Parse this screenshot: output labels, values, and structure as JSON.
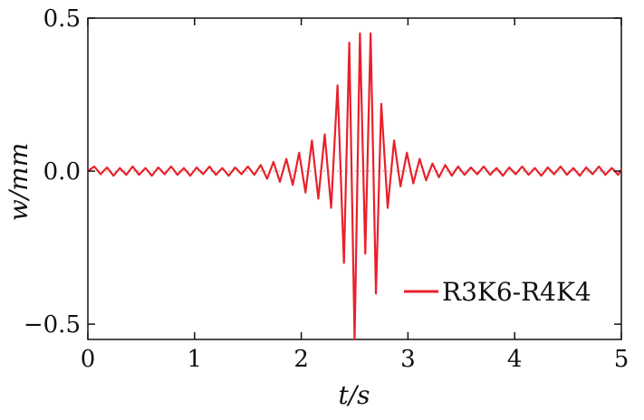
{
  "chart_data": {
    "type": "line",
    "xlabel": "t/s",
    "ylabel": "w/mm",
    "xlim": [
      0,
      5
    ],
    "ylim": [
      -0.55,
      0.5
    ],
    "x_ticks": [
      0,
      1,
      2,
      3,
      4,
      5
    ],
    "y_ticks": [
      -0.5,
      0.0,
      0.5
    ],
    "x_tick_labels": [
      "0",
      "1",
      "2",
      "3",
      "4",
      "5"
    ],
    "y_tick_labels": [
      "−0.5",
      "0.0",
      "0.5"
    ],
    "grid": false,
    "legend_position": "bottom-right",
    "series": [
      {
        "name": "R3K6-R4K4",
        "color": "#e8212b",
        "x": [
          0.0,
          0.06,
          0.12,
          0.18,
          0.24,
          0.3,
          0.36,
          0.42,
          0.48,
          0.54,
          0.6,
          0.66,
          0.72,
          0.78,
          0.84,
          0.9,
          0.96,
          1.02,
          1.08,
          1.14,
          1.2,
          1.26,
          1.32,
          1.38,
          1.44,
          1.5,
          1.56,
          1.62,
          1.68,
          1.74,
          1.8,
          1.86,
          1.92,
          1.98,
          2.04,
          2.1,
          2.16,
          2.22,
          2.28,
          2.34,
          2.4,
          2.45,
          2.5,
          2.55,
          2.6,
          2.65,
          2.7,
          2.75,
          2.81,
          2.87,
          2.93,
          2.99,
          3.05,
          3.11,
          3.17,
          3.23,
          3.29,
          3.35,
          3.41,
          3.47,
          3.53,
          3.59,
          3.65,
          3.71,
          3.77,
          3.83,
          3.89,
          3.95,
          4.01,
          4.07,
          4.13,
          4.19,
          4.25,
          4.31,
          4.37,
          4.43,
          4.49,
          4.55,
          4.61,
          4.67,
          4.73,
          4.79,
          4.85,
          4.91,
          4.97,
          5.0
        ],
        "y": [
          0.0,
          0.015,
          -0.01,
          0.012,
          -0.015,
          0.01,
          -0.012,
          0.015,
          -0.012,
          0.01,
          -0.015,
          0.012,
          -0.01,
          0.015,
          -0.012,
          0.01,
          -0.015,
          0.012,
          -0.01,
          0.015,
          -0.012,
          0.01,
          -0.015,
          0.012,
          -0.01,
          0.015,
          -0.012,
          0.02,
          -0.025,
          0.03,
          -0.035,
          0.04,
          -0.045,
          0.06,
          -0.07,
          0.1,
          -0.09,
          0.12,
          -0.12,
          0.28,
          -0.3,
          0.42,
          -0.55,
          0.45,
          -0.27,
          0.45,
          -0.4,
          0.22,
          -0.12,
          0.1,
          -0.05,
          0.06,
          -0.04,
          0.04,
          -0.03,
          0.025,
          -0.02,
          0.02,
          -0.015,
          0.015,
          -0.012,
          0.012,
          -0.01,
          0.015,
          -0.012,
          0.01,
          -0.015,
          0.012,
          -0.01,
          0.015,
          -0.012,
          0.01,
          -0.015,
          0.012,
          -0.01,
          0.015,
          -0.012,
          0.01,
          -0.015,
          0.012,
          -0.01,
          0.015,
          -0.012,
          0.01,
          -0.012,
          0.005
        ]
      }
    ]
  }
}
